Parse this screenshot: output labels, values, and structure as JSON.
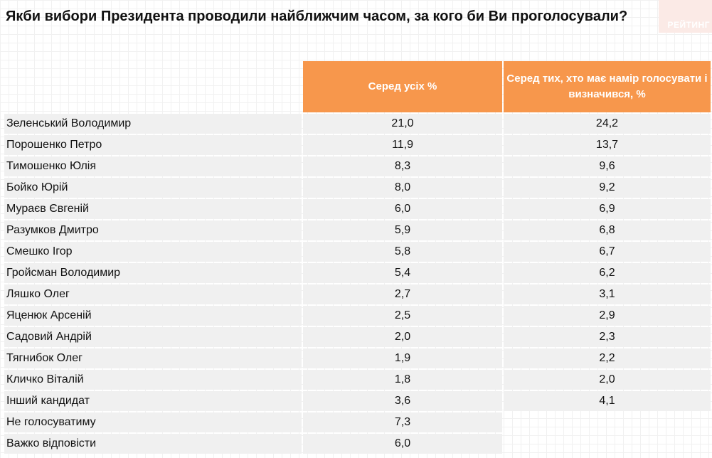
{
  "title": "Якби вибори Президента проводили найближчим часом, за кого би Ви проголосували?",
  "logo": {
    "text": "РЕЙТИНГ"
  },
  "colors": {
    "header": "#f7974c",
    "row": "#f0f0f0",
    "logo_bg": "#fbeae6"
  },
  "table": {
    "col_all": "Серед усіх %",
    "col_decided": "Серед тих, хто має намір голосувати і визначився, %",
    "rows": [
      {
        "name": "Зеленський Володимир",
        "all": "21,0",
        "decided": "24,2"
      },
      {
        "name": "Порошенко Петро",
        "all": "11,9",
        "decided": "13,7"
      },
      {
        "name": "Тимошенко Юлія",
        "all": "8,3",
        "decided": "9,6"
      },
      {
        "name": "Бойко Юрій",
        "all": "8,0",
        "decided": "9,2"
      },
      {
        "name": "Мураєв Євгеній",
        "all": "6,0",
        "decided": "6,9"
      },
      {
        "name": "Разумков Дмитро",
        "all": "5,9",
        "decided": "6,8"
      },
      {
        "name": "Смешко Ігор",
        "all": "5,8",
        "decided": "6,7"
      },
      {
        "name": "Гройсман Володимир",
        "all": "5,4",
        "decided": "6,2"
      },
      {
        "name": "Ляшко Олег",
        "all": "2,7",
        "decided": "3,1"
      },
      {
        "name": "Яценюк Арсеній",
        "all": "2,5",
        "decided": "2,9"
      },
      {
        "name": "Садовий Андрій",
        "all": "2,0",
        "decided": "2,3"
      },
      {
        "name": "Тягнибок Олег",
        "all": "1,9",
        "decided": "2,2"
      },
      {
        "name": "Кличко Віталій",
        "all": "1,8",
        "decided": "2,0"
      },
      {
        "name": "Інший кандидат",
        "all": "3,6",
        "decided": "4,1"
      },
      {
        "name": "Не голосуватиму",
        "all": "7,3",
        "decided": ""
      },
      {
        "name": "Важко відповісти",
        "all": "6,0",
        "decided": ""
      }
    ]
  }
}
